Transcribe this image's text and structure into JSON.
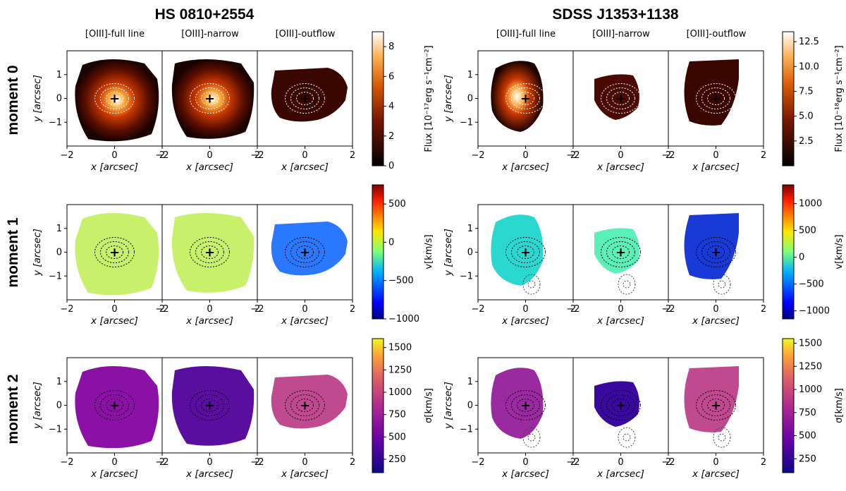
{
  "chart_data": {
    "type": "heatmap",
    "objects": [
      {
        "id": "hs",
        "title": "HS 0810+2554"
      },
      {
        "id": "sdss",
        "title": "SDSS J1353+1138"
      }
    ],
    "panel_titles": [
      "[OIII]-full line",
      "[OIII]-narrow",
      "[OIII]-outflow"
    ],
    "row_labels": [
      "moment 0",
      "moment 1",
      "moment 2"
    ],
    "xlabel": "x [arcsec]",
    "ylabel": "y [arcsec]",
    "xlim": [
      -2,
      2
    ],
    "ylim": [
      -2,
      2
    ],
    "xticks": [
      "−2",
      "0",
      "2"
    ],
    "yticks": [
      "1",
      "0",
      "−1"
    ],
    "center_marker": "+",
    "colorbars": {
      "hs": [
        {
          "label": "Flux [10$^{-17}$erg s$^{-1}$cm$^{-2}$]",
          "ticks": [
            "0",
            "2",
            "4",
            "6",
            "8"
          ],
          "range": [
            0,
            9
          ],
          "cmap": "gist_heat"
        },
        {
          "label": "v[km/s]",
          "ticks": [
            "500",
            "0",
            "−500",
            "−1000"
          ],
          "range": [
            -1000,
            750
          ],
          "cmap": "jet"
        },
        {
          "label": "σ[km/s]",
          "ticks": [
            "1500",
            "1250",
            "1000",
            "750",
            "500",
            "250"
          ],
          "range": [
            100,
            1600
          ],
          "cmap": "plasma"
        }
      ],
      "sdss": [
        {
          "label": "Flux [10$^{-18}$erg s$^{-1}$cm$^{-2}$]",
          "ticks": [
            "12.5",
            "10.0",
            "7.5",
            "5.0",
            "2.5"
          ],
          "range": [
            0,
            13.5
          ],
          "cmap": "gist_heat"
        },
        {
          "label": "v[km/s]",
          "ticks": [
            "1000",
            "500",
            "0",
            "−500",
            "−1000"
          ],
          "range": [
            -1150,
            1350
          ],
          "cmap": "jet"
        },
        {
          "label": "σ[km/s]",
          "ticks": [
            "1500",
            "1250",
            "1000",
            "750",
            "500",
            "250"
          ],
          "range": [
            100,
            1550
          ],
          "cmap": "plasma"
        }
      ]
    }
  }
}
